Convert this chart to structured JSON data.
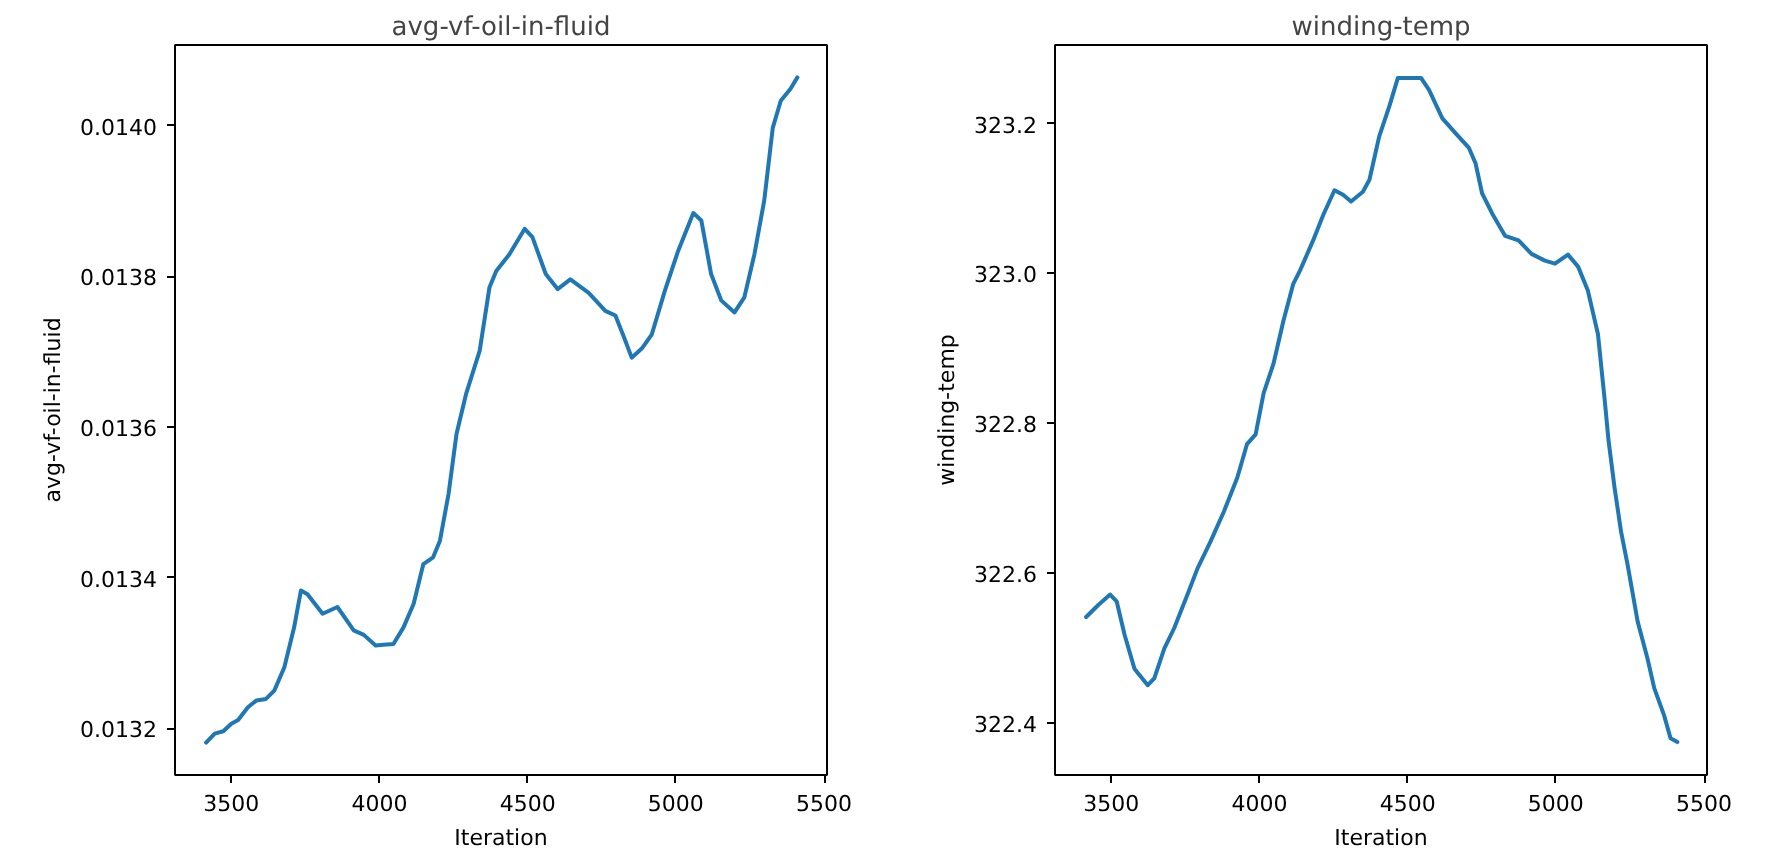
{
  "chart_data": [
    {
      "type": "line",
      "title": "avg-vf-oil-in-fluid",
      "xlabel": "Iteration",
      "ylabel": "avg-vf-oil-in-fluid",
      "grid": false,
      "xlim": [
        3310,
        5510
      ],
      "xticks": [
        3500,
        4000,
        4500,
        5000,
        5500
      ],
      "ylim": [
        0.013138,
        0.014107
      ],
      "yticks": [
        0.0132,
        0.0134,
        0.0136,
        0.0138,
        {
          "value": 0.014,
          "label": "0.0140"
        }
      ],
      "x": [
        3415,
        3444,
        3473,
        3500,
        3523,
        3556,
        3585,
        3617,
        3645,
        3679,
        3712,
        3735,
        3757,
        3808,
        3858,
        3913,
        3947,
        3987,
        4014,
        4047,
        4081,
        4115,
        4148,
        4181,
        4204,
        4233,
        4260,
        4293,
        4338,
        4371,
        4394,
        4438,
        4490,
        4516,
        4561,
        4601,
        4644,
        4706,
        4762,
        4796,
        4825,
        4851,
        4885,
        4919,
        4963,
        5008,
        5059,
        5086,
        5119,
        5153,
        5198,
        5231,
        5265,
        5298,
        5327,
        5354,
        5387,
        5410
      ],
      "series": [
        {
          "color": "#1f77b4",
          "values": [
            0.013181,
            0.013193,
            0.013196,
            0.013206,
            0.013211,
            0.013228,
            0.013237,
            0.013239,
            0.01325,
            0.013281,
            0.013334,
            0.013383,
            0.013378,
            0.013352,
            0.013361,
            0.01333,
            0.013324,
            0.01331,
            0.013311,
            0.013312,
            0.013334,
            0.013365,
            0.013418,
            0.013427,
            0.013449,
            0.013511,
            0.013591,
            0.013645,
            0.013701,
            0.013785,
            0.013807,
            0.013829,
            0.013863,
            0.013852,
            0.013803,
            0.013783,
            0.013796,
            0.013778,
            0.013754,
            0.013748,
            0.013719,
            0.013692,
            0.013704,
            0.013723,
            0.013781,
            0.013834,
            0.013884,
            0.013874,
            0.013803,
            0.013768,
            0.013752,
            0.013772,
            0.013829,
            0.0139,
            0.013997,
            0.014033,
            0.014049,
            0.014064
          ]
        }
      ]
    },
    {
      "type": "line",
      "title": "winding-temp",
      "xlabel": "Iteration",
      "ylabel": "winding-temp",
      "grid": false,
      "xlim": [
        3310,
        5510
      ],
      "xticks": [
        3500,
        4000,
        4500,
        5000,
        5500
      ],
      "ylim": [
        322.33,
        323.305
      ],
      "yticks": [
        322.4,
        322.6,
        322.8,
        {
          "value": 323,
          "label": "323.0"
        },
        323.2
      ],
      "x": [
        3415,
        3456,
        3496,
        3518,
        3545,
        3578,
        3623,
        3645,
        3679,
        3712,
        3757,
        3791,
        3835,
        3880,
        3925,
        3958,
        3987,
        4014,
        4047,
        4081,
        4114,
        4137,
        4181,
        4215,
        4253,
        4282,
        4309,
        4349,
        4371,
        4404,
        4438,
        4467,
        4501,
        4545,
        4572,
        4617,
        4662,
        4706,
        4729,
        4751,
        4785,
        4829,
        4874,
        4918,
        4963,
        4997,
        5041,
        5075,
        5108,
        5142,
        5165,
        5178,
        5198,
        5220,
        5242,
        5276,
        5309,
        5332,
        5365,
        5387,
        5410
      ],
      "series": [
        {
          "color": "#1f77b4",
          "values": [
            322.541,
            322.557,
            322.571,
            322.562,
            322.517,
            322.472,
            322.45,
            322.459,
            322.499,
            322.526,
            322.571,
            322.606,
            322.642,
            322.682,
            322.727,
            322.772,
            322.785,
            322.84,
            322.879,
            322.937,
            322.986,
            323.004,
            323.044,
            323.078,
            323.111,
            323.105,
            323.096,
            323.109,
            323.125,
            323.183,
            323.223,
            323.261,
            323.261,
            323.261,
            323.245,
            323.207,
            323.187,
            323.168,
            323.147,
            323.107,
            323.08,
            323.05,
            323.044,
            323.026,
            323.017,
            323.013,
            323.025,
            323.009,
            322.977,
            322.919,
            322.83,
            322.776,
            322.714,
            322.655,
            322.611,
            322.535,
            322.486,
            322.446,
            322.41,
            322.379,
            322.374
          ]
        }
      ]
    }
  ]
}
